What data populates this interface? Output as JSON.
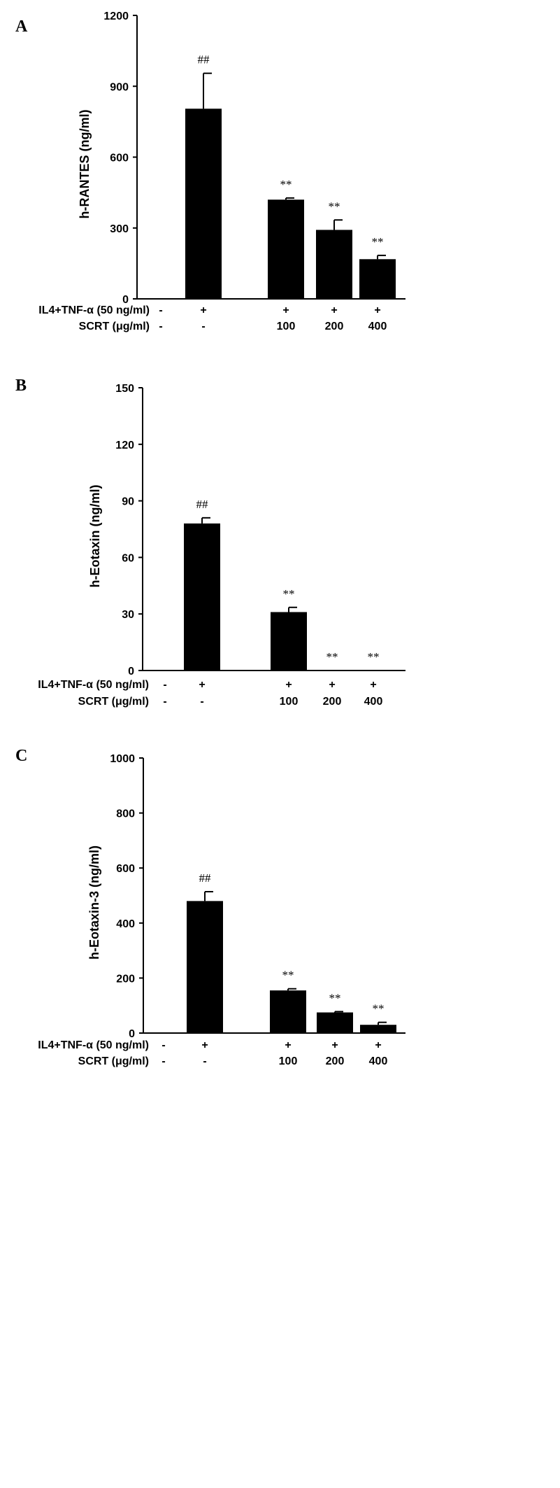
{
  "chart_data": [
    {
      "type": "bar",
      "panel": "A",
      "ylabel": "h-RANTES (ng/ml)",
      "ylim": [
        0,
        1200
      ],
      "yticks": [
        0,
        300,
        600,
        900,
        1200
      ],
      "values": [
        0,
        805,
        420,
        292,
        168
      ],
      "errors": [
        0,
        150,
        7,
        42,
        16
      ],
      "markers": [
        "",
        "##",
        "**",
        "**",
        "**"
      ],
      "rows": [
        {
          "label": "IL4+TNF-α (50 ng/ml)",
          "values": [
            "-",
            "+",
            "+",
            "+",
            "+"
          ]
        },
        {
          "label": "SCRT  (μg/ml)",
          "values": [
            "-",
            "-",
            "100",
            "200",
            "400"
          ]
        }
      ]
    },
    {
      "type": "bar",
      "panel": "B",
      "ylabel": "h-Eotaxin (ng/ml)",
      "ylim": [
        0,
        150
      ],
      "yticks": [
        0,
        30,
        60,
        90,
        120,
        150
      ],
      "values": [
        0,
        78,
        31,
        0,
        0
      ],
      "errors": [
        0,
        3,
        2.5,
        0,
        0
      ],
      "markers": [
        "",
        "##",
        "**",
        "**",
        "**"
      ],
      "rows": [
        {
          "label": "IL4+TNF-α (50 ng/ml)",
          "values": [
            "-",
            "+",
            "+",
            "+",
            "+"
          ]
        },
        {
          "label": "SCRT  (μg/ml)",
          "values": [
            "-",
            "-",
            "100",
            "200",
            "400"
          ]
        }
      ]
    },
    {
      "type": "bar",
      "panel": "C",
      "ylabel": "h-Eotaxin-3 (ng/ml)",
      "ylim": [
        0,
        1000
      ],
      "yticks": [
        0,
        200,
        400,
        600,
        800,
        1000
      ],
      "values": [
        0,
        480,
        155,
        75,
        30
      ],
      "errors": [
        0,
        34,
        6,
        3,
        9
      ],
      "markers": [
        "",
        "##",
        "**",
        "**",
        "**"
      ],
      "rows": [
        {
          "label": "IL4+TNF-α (50 ng/ml)",
          "values": [
            "-",
            "+",
            "+",
            "+",
            "+"
          ]
        },
        {
          "label": "SCRT  (μg/ml)",
          "values": [
            "-",
            "-",
            "100",
            "200",
            "400"
          ]
        }
      ]
    }
  ]
}
